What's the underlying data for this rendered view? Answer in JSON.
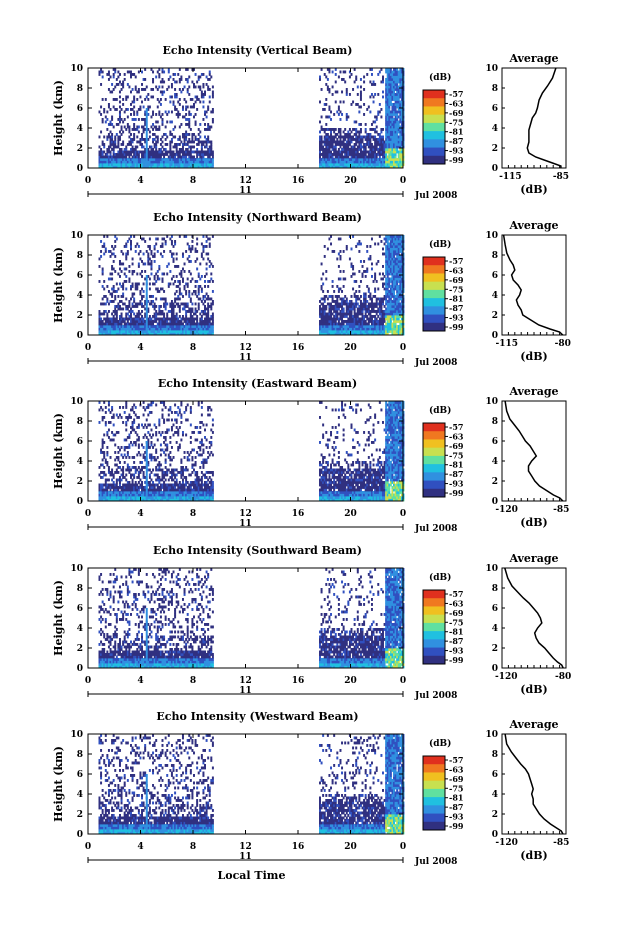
{
  "colorbar": {
    "unit": "(dB)",
    "ticks": [
      "-57",
      "-63",
      "-69",
      "-75",
      "-81",
      "-87",
      "-93",
      "-99"
    ],
    "colors": [
      "#e0301e",
      "#f07820",
      "#f0c020",
      "#c8e050",
      "#60e0a0",
      "#20c0e0",
      "#3090e0",
      "#3050c0",
      "#303080"
    ]
  },
  "axes": {
    "height_label": "Height (km)",
    "height_ticks": [
      "0",
      "2",
      "4",
      "6",
      "8",
      "10"
    ],
    "time_ticks": [
      "0",
      "4",
      "8",
      "12",
      "16",
      "20",
      "0"
    ],
    "date_day": "11",
    "date_suffix": "Jul 2008",
    "xlabel": "Local Time",
    "avg_title": "Average",
    "avg_xlabel": "(dB)"
  },
  "chart_data": [
    {
      "type": "heatmap",
      "title": "Echo Intensity (Vertical Beam)",
      "avg_xticks": [
        "-115",
        "-85"
      ],
      "avg_xlim": [
        -120,
        -82
      ],
      "avg_profile": [
        [
          -88,
          10
        ],
        [
          -90,
          9
        ],
        [
          -93,
          8.2
        ],
        [
          -96,
          7.5
        ],
        [
          -98,
          6.8
        ],
        [
          -99,
          6
        ],
        [
          -100,
          5.5
        ],
        [
          -102,
          5
        ],
        [
          -103,
          4.4
        ],
        [
          -104,
          3.8
        ],
        [
          -104,
          3.2
        ],
        [
          -104,
          2.6
        ],
        [
          -105,
          2
        ],
        [
          -104,
          1.5
        ],
        [
          -100,
          1.1
        ],
        [
          -95,
          0.8
        ],
        [
          -90,
          0.5
        ],
        [
          -85,
          0.2
        ],
        [
          -85,
          0
        ]
      ],
      "data_blocks": [
        {
          "t": [
            0.8,
            9.5
          ],
          "h": [
            0,
            10
          ]
        },
        {
          "t": [
            17.6,
            24
          ],
          "h": [
            0,
            10
          ]
        }
      ]
    },
    {
      "type": "heatmap",
      "title": "Echo Intensity (Northward Beam)",
      "avg_xticks": [
        "-115",
        "-80"
      ],
      "avg_xlim": [
        -118,
        -78
      ],
      "avg_profile": [
        [
          -117,
          10
        ],
        [
          -116,
          9
        ],
        [
          -115,
          8.2
        ],
        [
          -113,
          7.5
        ],
        [
          -111,
          7
        ],
        [
          -110,
          6.5
        ],
        [
          -112,
          6
        ],
        [
          -111,
          5.5
        ],
        [
          -108,
          5
        ],
        [
          -106,
          4.5
        ],
        [
          -107,
          4
        ],
        [
          -109,
          3.5
        ],
        [
          -108,
          3
        ],
        [
          -106,
          2.5
        ],
        [
          -105,
          2
        ],
        [
          -100,
          1.5
        ],
        [
          -95,
          1
        ],
        [
          -88,
          0.6
        ],
        [
          -82,
          0.3
        ],
        [
          -80,
          0
        ]
      ],
      "data_blocks": [
        {
          "t": [
            0.8,
            9.5
          ],
          "h": [
            0,
            10
          ]
        },
        {
          "t": [
            17.6,
            24
          ],
          "h": [
            0,
            10
          ]
        }
      ]
    },
    {
      "type": "heatmap",
      "title": "Echo Intensity (Eastward Beam)",
      "avg_xticks": [
        "-120",
        "-85"
      ],
      "avg_xlim": [
        -123,
        -82
      ],
      "avg_profile": [
        [
          -121,
          10
        ],
        [
          -120,
          9
        ],
        [
          -118,
          8.2
        ],
        [
          -115,
          7.6
        ],
        [
          -112,
          7
        ],
        [
          -110,
          6.5
        ],
        [
          -108,
          6
        ],
        [
          -105,
          5.5
        ],
        [
          -103,
          5
        ],
        [
          -101,
          4.5
        ],
        [
          -104,
          4
        ],
        [
          -106,
          3.5
        ],
        [
          -106,
          3
        ],
        [
          -104,
          2.5
        ],
        [
          -102,
          2
        ],
        [
          -99,
          1.5
        ],
        [
          -94,
          1
        ],
        [
          -90,
          0.6
        ],
        [
          -86,
          0.3
        ],
        [
          -84,
          0
        ]
      ],
      "data_blocks": [
        {
          "t": [
            0.8,
            9.5
          ],
          "h": [
            0,
            10
          ]
        },
        {
          "t": [
            17.6,
            24
          ],
          "h": [
            0,
            10
          ]
        }
      ]
    },
    {
      "type": "heatmap",
      "title": "Echo Intensity (Southward Beam)",
      "avg_xticks": [
        "-120",
        "-80"
      ],
      "avg_xlim": [
        -123,
        -78
      ],
      "avg_profile": [
        [
          -121,
          10
        ],
        [
          -119,
          9
        ],
        [
          -116,
          8.2
        ],
        [
          -112,
          7.6
        ],
        [
          -108,
          7
        ],
        [
          -104,
          6.5
        ],
        [
          -101,
          6
        ],
        [
          -98,
          5.5
        ],
        [
          -96,
          5
        ],
        [
          -95,
          4.5
        ],
        [
          -98,
          4
        ],
        [
          -100,
          3.5
        ],
        [
          -99,
          3
        ],
        [
          -97,
          2.5
        ],
        [
          -93,
          2
        ],
        [
          -90,
          1.5
        ],
        [
          -87,
          1
        ],
        [
          -84,
          0.6
        ],
        [
          -81,
          0.3
        ],
        [
          -80,
          0
        ]
      ],
      "data_blocks": [
        {
          "t": [
            0.8,
            9.5
          ],
          "h": [
            0,
            10
          ]
        },
        {
          "t": [
            17.6,
            24
          ],
          "h": [
            0,
            10
          ]
        }
      ]
    },
    {
      "type": "heatmap",
      "title": "Echo Intensity (Westward Beam)",
      "avg_xticks": [
        "-120",
        "-85"
      ],
      "avg_xlim": [
        -123,
        -82
      ],
      "avg_profile": [
        [
          -121,
          10
        ],
        [
          -120,
          9
        ],
        [
          -117,
          8.2
        ],
        [
          -114,
          7.6
        ],
        [
          -111,
          7
        ],
        [
          -108,
          6.5
        ],
        [
          -106,
          6
        ],
        [
          -105,
          5.5
        ],
        [
          -104,
          5
        ],
        [
          -103,
          4.5
        ],
        [
          -104,
          4
        ],
        [
          -103,
          3.5
        ],
        [
          -103,
          3
        ],
        [
          -101,
          2.5
        ],
        [
          -99,
          2
        ],
        [
          -96,
          1.5
        ],
        [
          -92,
          1
        ],
        [
          -88,
          0.6
        ],
        [
          -85,
          0.3
        ],
        [
          -84,
          0
        ]
      ],
      "data_blocks": [
        {
          "t": [
            0.8,
            9.5
          ],
          "h": [
            0,
            10
          ]
        },
        {
          "t": [
            17.6,
            24
          ],
          "h": [
            0,
            10
          ]
        }
      ]
    }
  ]
}
